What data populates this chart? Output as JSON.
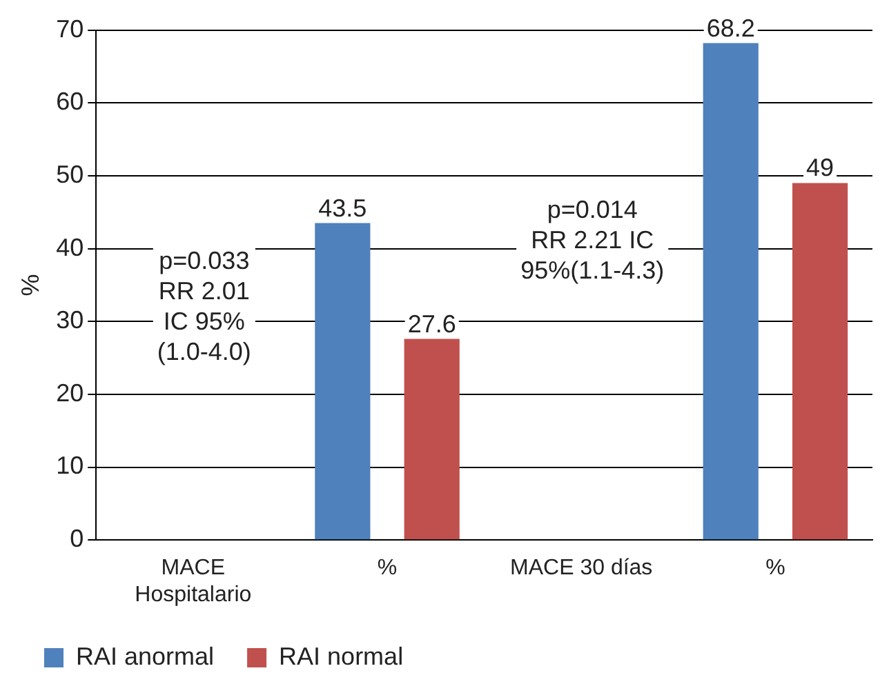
{
  "chart_data": {
    "type": "bar",
    "ylabel": "%",
    "categories": [
      "MACE\nHospitalario",
      "%",
      "MACE 30 días",
      "%"
    ],
    "series": [
      {
        "name": "RAI anormal",
        "color": "#4f81bd",
        "values": [
          null,
          43.5,
          null,
          68.2
        ]
      },
      {
        "name": "RAI normal",
        "color": "#c0504d",
        "values": [
          null,
          27.6,
          null,
          49
        ]
      }
    ],
    "ylim": [
      0,
      70
    ],
    "yticks": [
      0,
      10,
      20,
      30,
      40,
      50,
      60,
      70
    ],
    "grid": "y",
    "legend": "bottom",
    "data_labels": true,
    "annotations": [
      "p=0.033\nRR 2.01\nIC 95%\n(1.0-4.0)",
      "p=0.014\nRR 2.21 IC\n95%(1.1-4.3)"
    ]
  }
}
